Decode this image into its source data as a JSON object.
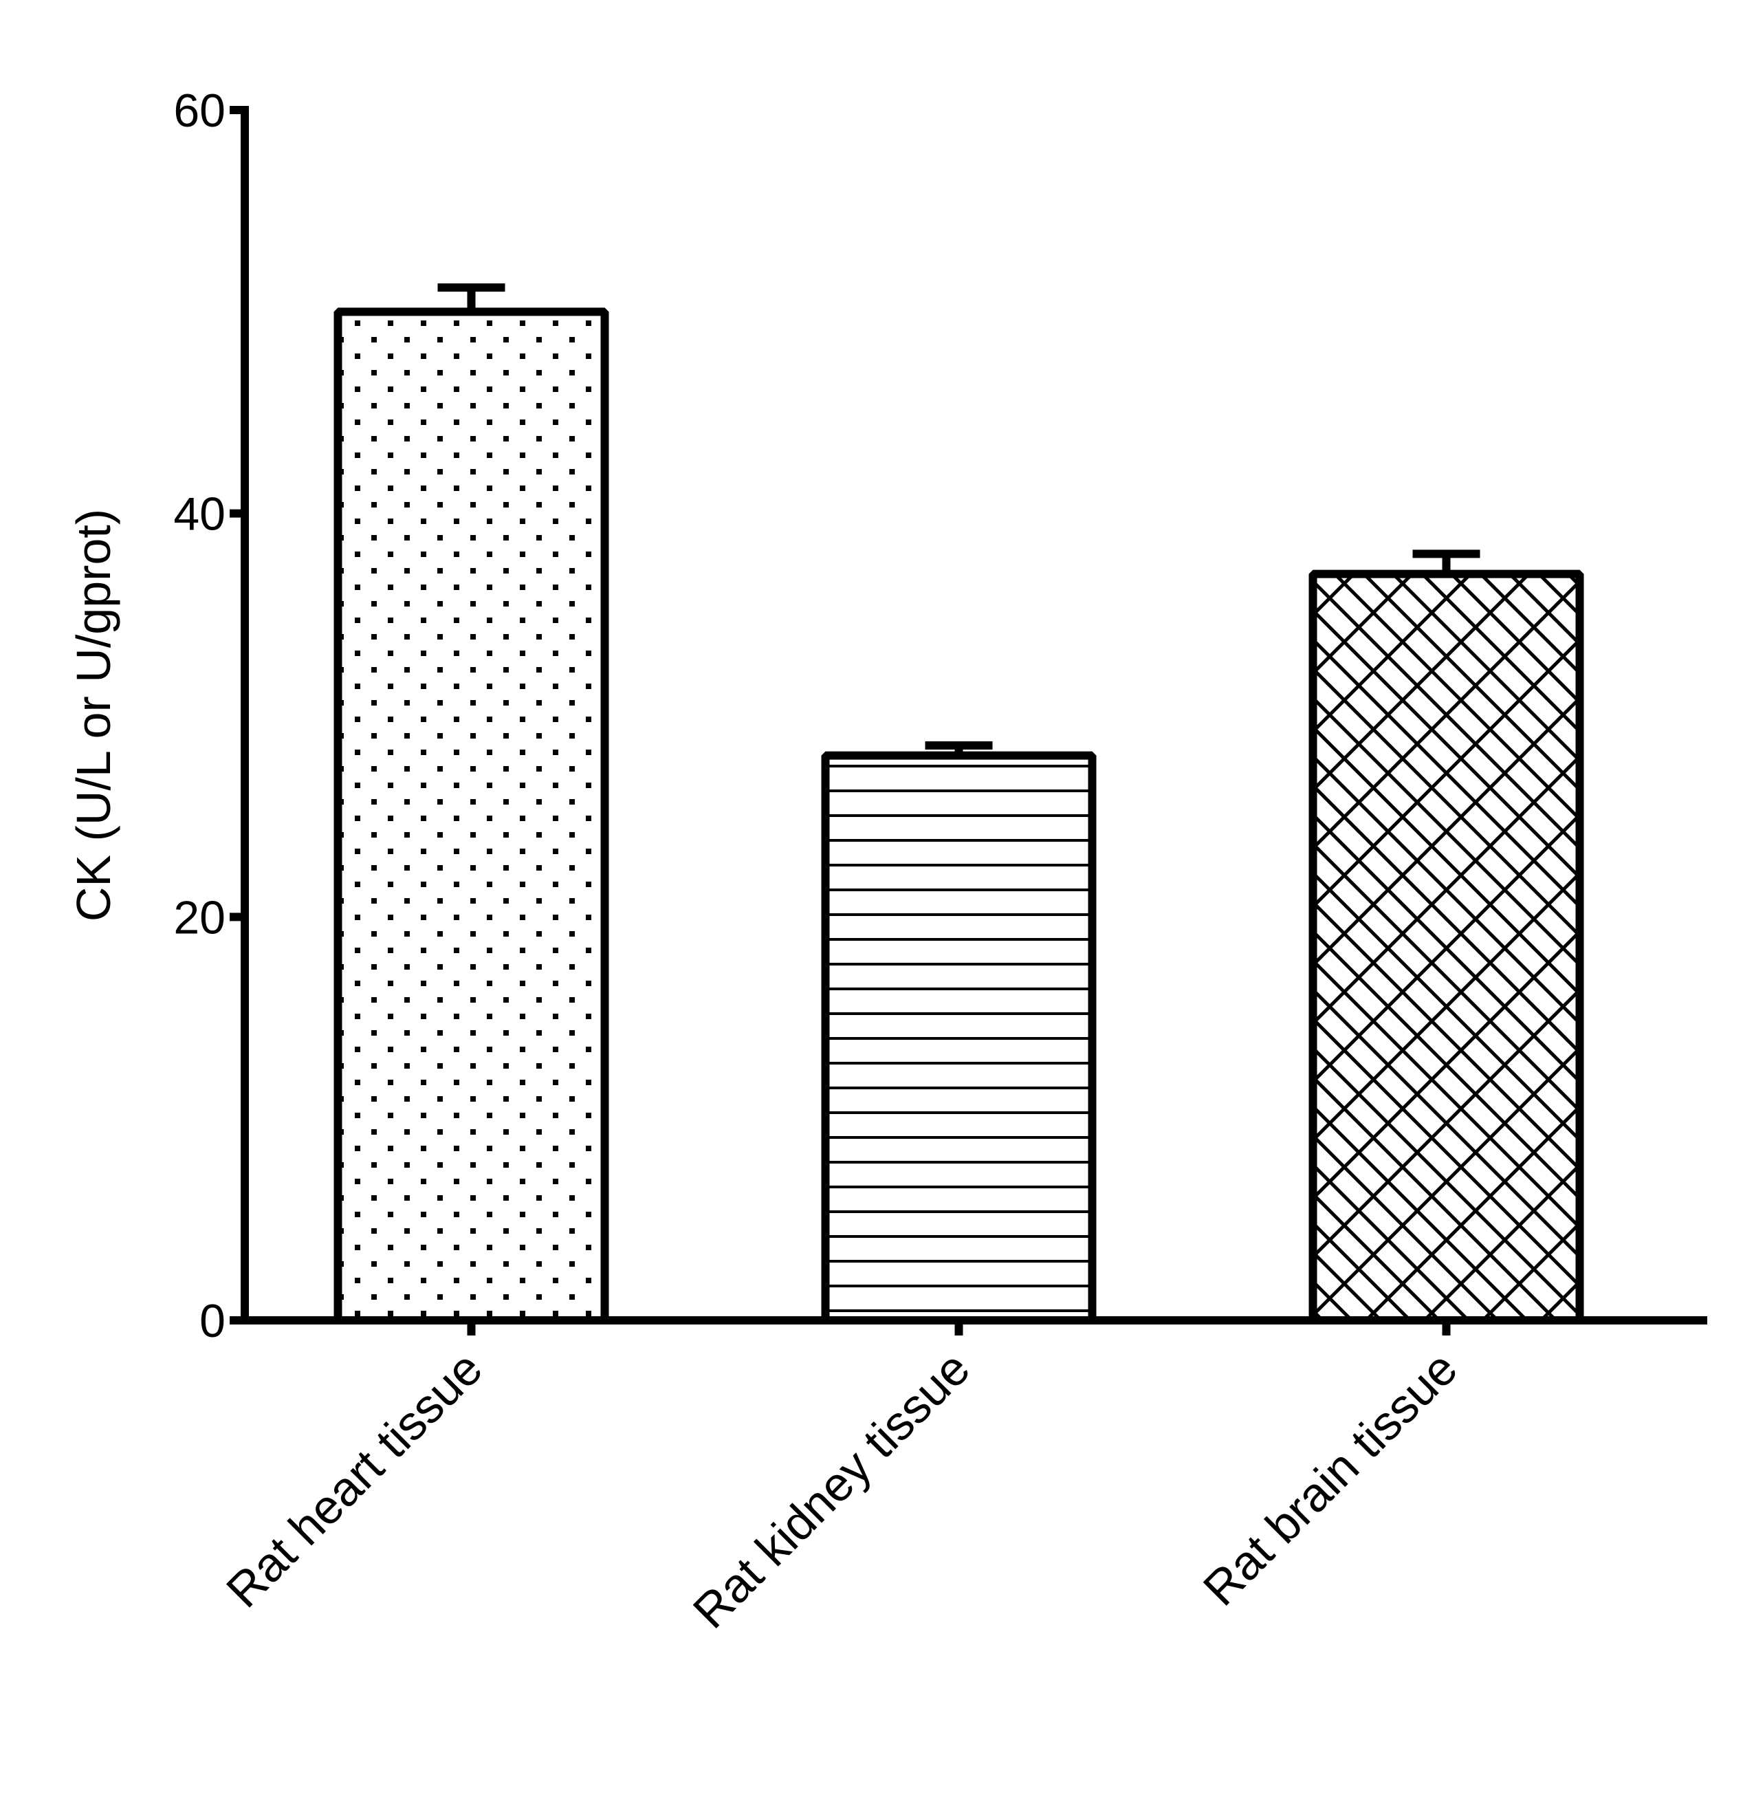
{
  "chart_data": {
    "type": "bar",
    "title": "",
    "xlabel": "",
    "ylabel": "CK (U/L or U/gprot)",
    "ylim": [
      0,
      60
    ],
    "yticks": [
      "0",
      "20",
      "40",
      "60"
    ],
    "categories": [
      "Rat heart tissue",
      "Rat kidney tissue",
      "Rat brain tissue"
    ],
    "values": [
      50.0,
      28.0,
      37.0
    ],
    "error_upper": [
      1.2,
      0.5,
      1.0
    ],
    "fill_patterns": [
      "dots",
      "horizontal-lines",
      "diagonal-brick"
    ],
    "colors": {
      "stroke": "#000000",
      "fill": "#ffffff"
    },
    "grid": false
  }
}
